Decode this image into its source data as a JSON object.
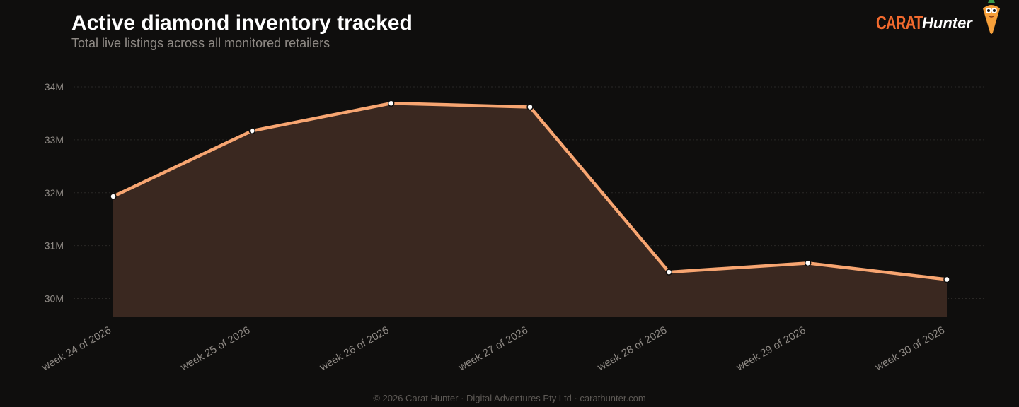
{
  "header": {
    "title": "Active diamond inventory tracked",
    "subtitle": "Total live listings across all monitored retailers"
  },
  "brand": {
    "carat": "CARAT",
    "hunter": "Hunter",
    "mascot_icon": "carrot-mascot-icon"
  },
  "footer": {
    "text": "© 2026 Carat Hunter · Digital Adventures Pty Ltd · carathunter.com"
  },
  "colors": {
    "background": "#0f0e0d",
    "line": "#f7a571",
    "area": "#3a2820",
    "marker_fill": "#ffffff",
    "marker_stroke": "#0f0e0d",
    "grid": "#2a2826",
    "brand_orange": "#f26a2e"
  },
  "chart_data": {
    "type": "area",
    "title": "Active diamond inventory tracked",
    "subtitle": "Total live listings across all monitored retailers",
    "xlabel": "",
    "ylabel": "",
    "categories": [
      "week 24 of 2026",
      "week 25 of 2026",
      "week 26 of 2026",
      "week 27 of 2026",
      "week 28 of 2026",
      "week 29 of 2026",
      "week 30 of 2026"
    ],
    "series": [
      {
        "values": [
          31.93,
          33.17,
          33.69,
          33.62,
          30.5,
          30.67,
          30.36
        ]
      }
    ],
    "unit_suffix": "M",
    "yticks": [
      30,
      31,
      32,
      33,
      34
    ],
    "ytick_labels": [
      "30M",
      "31M",
      "32M",
      "33M",
      "34M"
    ],
    "ylim": [
      29.65,
      34.35
    ],
    "grid": true,
    "grid_style": "dotted-horizontal",
    "legend": "none"
  }
}
